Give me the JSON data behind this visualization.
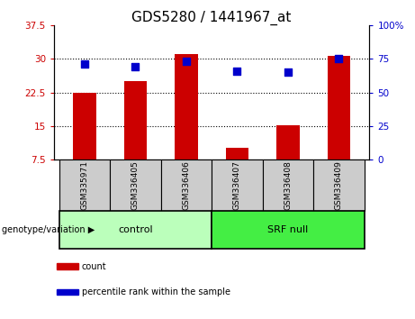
{
  "title": "GDS5280 / 1441967_at",
  "categories": [
    "GSM335971",
    "GSM336405",
    "GSM336406",
    "GSM336407",
    "GSM336408",
    "GSM336409"
  ],
  "bar_values": [
    22.5,
    25.0,
    31.2,
    10.2,
    15.2,
    30.8
  ],
  "percentile_values": [
    71,
    69,
    73,
    66,
    65,
    75
  ],
  "bar_color": "#cc0000",
  "dot_color": "#0000cc",
  "ylim_left": [
    7.5,
    37.5
  ],
  "ylim_right": [
    0,
    100
  ],
  "yticks_left": [
    7.5,
    15.0,
    22.5,
    30.0,
    37.5
  ],
  "ytick_labels_left": [
    "7.5",
    "15",
    "22.5",
    "30",
    "37.5"
  ],
  "yticks_right": [
    0,
    25,
    50,
    75,
    100
  ],
  "ytick_labels_right": [
    "0",
    "25",
    "50",
    "75",
    "100%"
  ],
  "groups": [
    {
      "label": "control",
      "indices": [
        0,
        1,
        2
      ],
      "color": "#aaffaa"
    },
    {
      "label": "SRF null",
      "indices": [
        3,
        4,
        5
      ],
      "color": "#44ee44"
    }
  ],
  "group_label": "genotype/variation",
  "legend_items": [
    {
      "label": "count",
      "color": "#cc0000"
    },
    {
      "label": "percentile rank within the sample",
      "color": "#0000cc"
    }
  ],
  "bar_width": 0.45,
  "dot_size": 30,
  "title_fontsize": 11,
  "tick_fontsize": 7.5,
  "label_fontsize": 8,
  "gray_box_color": "#cccccc",
  "control_color": "#bbffbb",
  "srfnull_color": "#44ee44"
}
